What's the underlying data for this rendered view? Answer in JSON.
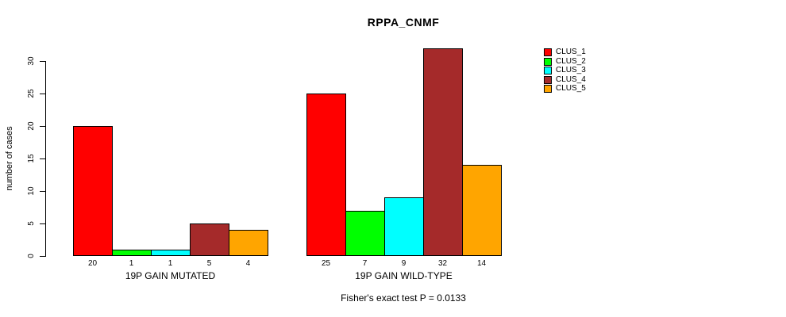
{
  "chart_data": {
    "type": "bar",
    "title": "RPPA_CNMF",
    "ylabel": "number of cases",
    "ylim": [
      0,
      30
    ],
    "yticks": [
      0,
      5,
      10,
      15,
      20,
      25,
      30
    ],
    "grid": false,
    "legend_position": "right",
    "legend": [
      {
        "label": "CLUS_1",
        "color": "#FF0000"
      },
      {
        "label": "CLUS_2",
        "color": "#00FF00"
      },
      {
        "label": "CLUS_3",
        "color": "#00FFFF"
      },
      {
        "label": "CLUS_4",
        "color": "#A52A2A"
      },
      {
        "label": "CLUS_5",
        "color": "#FFA500"
      }
    ],
    "groups": [
      {
        "label": "19P GAIN MUTATED",
        "values": [
          20,
          1,
          1,
          5,
          4
        ]
      },
      {
        "label": "19P GAIN WILD-TYPE",
        "values": [
          25,
          7,
          9,
          32,
          14
        ]
      }
    ],
    "annotation": "Fisher's exact test P = 0.0133"
  }
}
